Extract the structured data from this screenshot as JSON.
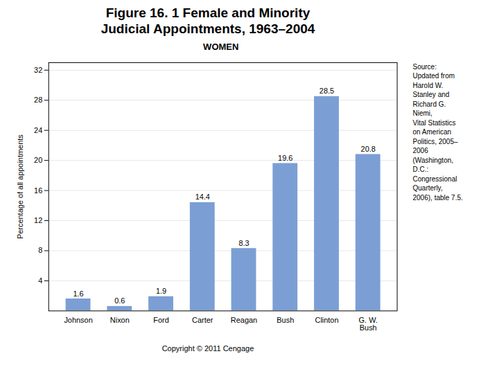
{
  "chart_data": {
    "type": "bar",
    "title": "Figure 16. 1 Female and Minority\nJudicial Appointments, 1963–2004",
    "subtitle": "WOMEN",
    "categories": [
      "Johnson",
      "Nixon",
      "Ford",
      "Carter",
      "Reagan",
      "Bush",
      "Clinton",
      "G. W.\nBush"
    ],
    "values": [
      1.6,
      0.6,
      1.9,
      14.4,
      8.3,
      19.6,
      28.5,
      20.8
    ],
    "color": "#7B9FD4",
    "ylabel": "Percentage of all appointments",
    "ylim": [
      0,
      33
    ],
    "yticks": [
      4,
      8,
      12,
      16,
      20,
      24,
      28,
      32
    ],
    "grid": true,
    "data_labels": true,
    "annotations": [
      "Source:\nUpdated from\nHarold W.\nStanley and\nRichard G.\nNiemi,\nVital Statistics\non American\nPolitics, 2005–\n2006\n(Washington,\nD.C.:\nCongressional\nQuarterly,\n2006), table 7.5.",
      "Copyright © 2011 Cengage"
    ]
  }
}
